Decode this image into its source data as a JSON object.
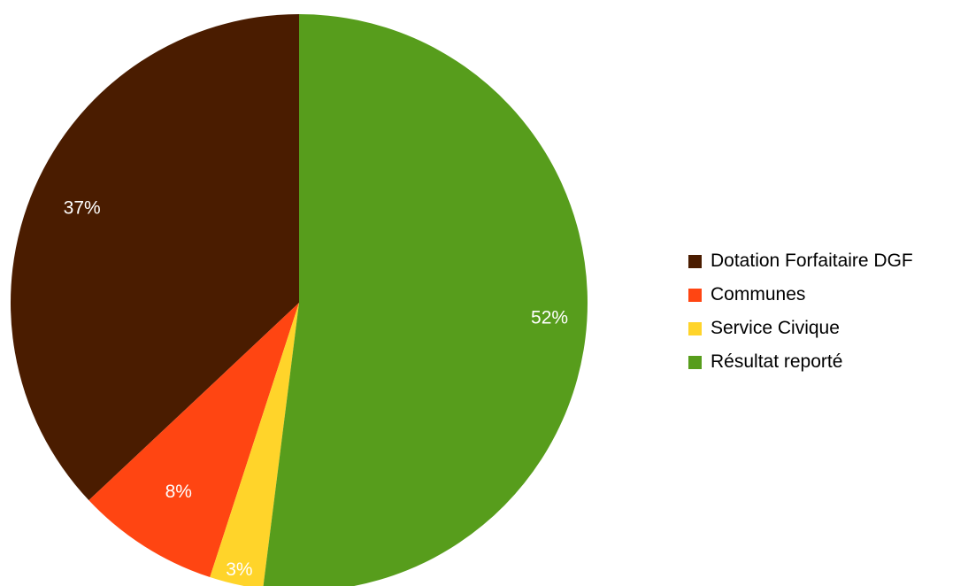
{
  "chart_data": {
    "type": "pie",
    "slices": [
      {
        "name": "Dotation Forfaitaire DGF",
        "value": 37,
        "label": "37%",
        "color": "#4a1c00"
      },
      {
        "name": "Communes",
        "value": 8,
        "label": "8%",
        "color": "#ff4512"
      },
      {
        "name": "Service Civique",
        "value": 3,
        "label": "3%",
        "color": "#ffd42a"
      },
      {
        "name": "Résultat reporté",
        "value": 52,
        "label": "52%",
        "color": "#579d1c"
      }
    ],
    "legend_position": "right"
  }
}
